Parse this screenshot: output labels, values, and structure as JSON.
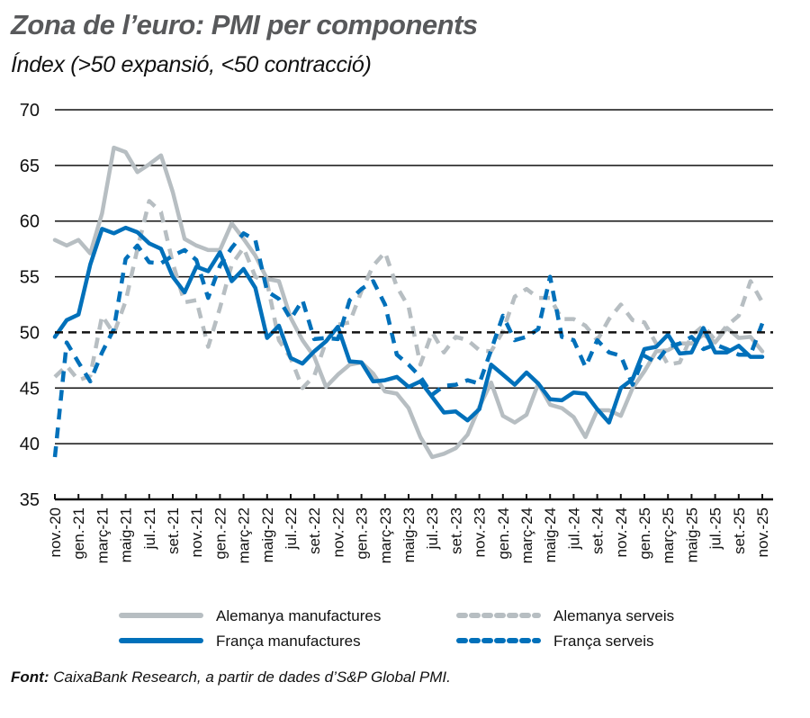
{
  "header": {
    "title": "Zona de l’euro: PMI per components",
    "subtitle": "Índex (>50 expansió, <50 contracció)"
  },
  "source": {
    "label": "Font:",
    "text": " CaixaBank Research, a partir de dades d’S&P Global PMI."
  },
  "colors": {
    "grey": "#b7bec2",
    "blue": "#0070ba",
    "grid": "#111111"
  },
  "chart_data": {
    "type": "line",
    "title": "Zona de l’euro: PMI per components",
    "subtitle": "Índex (>50 expansió, <50 contracció)",
    "xlabel": "",
    "ylabel": "Índex",
    "ylim": [
      35,
      70
    ],
    "yticks": [
      35,
      40,
      45,
      50,
      55,
      60,
      65,
      70
    ],
    "grid": true,
    "reference_line": {
      "y": 50,
      "style": "dashed",
      "color": "#111111"
    },
    "legend_position": "bottom",
    "x_tick_labels": [
      "nov.-20",
      "gen.-21",
      "març-21",
      "maig-21",
      "jul.-21",
      "set.-21",
      "nov.-21",
      "gen.-22",
      "març-22",
      "maig-22",
      "jul.-22",
      "set.-22",
      "nov.-22",
      "gen.-23",
      "març-23",
      "maig-23",
      "jul.-23",
      "set.-23",
      "nov.-23",
      "gen.-24",
      "març-24",
      "maig-24",
      "jul.-24",
      "set.-24",
      "nov.-24",
      "gen.-25",
      "març-25",
      "maig-25",
      "jul.-25",
      "set.-25",
      "nov.-25"
    ],
    "x_start": "nov.-20",
    "x_end": "nov.-25",
    "frequency": "monthly",
    "series": [
      {
        "name": "Alemanya manufactures",
        "color": "#b7bec2",
        "style": "solid",
        "values": [
          58.3,
          57.8,
          58.3,
          57.1,
          60.7,
          66.6,
          66.2,
          64.4,
          65.1,
          65.9,
          62.6,
          58.4,
          57.8,
          57.4,
          57.4,
          59.8,
          58.4,
          56.9,
          54.8,
          54.6,
          51.3,
          49.3,
          47.8,
          45.1,
          46.2,
          47.1,
          47.3,
          46.3,
          44.7,
          44.5,
          43.2,
          40.6,
          38.8,
          39.1,
          39.6,
          40.8,
          43.3,
          45.5,
          42.5,
          41.9,
          42.6,
          45.4,
          43.5,
          43.2,
          42.4,
          40.6,
          43.0,
          43.0,
          42.5,
          45.0,
          46.5,
          48.3,
          48.4,
          49.0,
          49.0,
          49.8,
          49.1,
          50.4,
          49.5,
          49.6,
          48.3
        ]
      },
      {
        "name": "Alemanya serveis",
        "color": "#b7bec2",
        "style": "dashed",
        "values": [
          46.0,
          47.0,
          45.7,
          46.1,
          51.5,
          49.9,
          52.8,
          57.5,
          61.8,
          60.8,
          56.2,
          52.7,
          52.9,
          48.7,
          52.2,
          56.1,
          57.6,
          55.0,
          54.5,
          49.3,
          47.7,
          45.0,
          46.1,
          49.2,
          50.7,
          50.9,
          53.7,
          56.0,
          57.2,
          54.1,
          52.3,
          47.1,
          50.0,
          48.2,
          49.6,
          49.3,
          48.4,
          48.3,
          50.1,
          53.2,
          53.9,
          53.1,
          53.1,
          51.2,
          51.2,
          50.6,
          49.3,
          51.2,
          52.5,
          51.1,
          50.9,
          49.0,
          47.1,
          47.3,
          49.7,
          50.6,
          49.3,
          50.6,
          51.5,
          54.6,
          52.7
        ]
      },
      {
        "name": "França manufactures",
        "color": "#0070ba",
        "style": "solid",
        "values": [
          49.6,
          51.1,
          51.6,
          56.1,
          59.3,
          58.9,
          59.4,
          59.0,
          58.0,
          57.5,
          55.0,
          53.6,
          55.9,
          55.5,
          57.2,
          54.6,
          55.7,
          54.0,
          49.5,
          50.6,
          47.7,
          47.2,
          48.3,
          49.2,
          50.5,
          47.4,
          47.3,
          45.6,
          45.7,
          46.0,
          45.1,
          45.6,
          44.2,
          42.8,
          42.9,
          42.1,
          43.1,
          47.1,
          46.2,
          45.3,
          46.4,
          45.4,
          44.0,
          43.9,
          44.6,
          44.5,
          43.1,
          41.9,
          45.0,
          45.8,
          48.5,
          48.7,
          49.8,
          48.1,
          48.2,
          50.4,
          48.2,
          48.2,
          48.8,
          47.8,
          47.8
        ]
      },
      {
        "name": "França serveis",
        "color": "#0070ba",
        "style": "dashed",
        "values": [
          38.8,
          49.1,
          47.3,
          45.6,
          48.2,
          50.3,
          56.6,
          57.8,
          56.3,
          56.2,
          56.9,
          57.4,
          56.5,
          53.1,
          56.0,
          57.6,
          58.9,
          58.3,
          53.7,
          53.0,
          51.2,
          52.9,
          49.4,
          49.5,
          49.4,
          52.9,
          53.9,
          54.6,
          52.5,
          48.0,
          47.1,
          46.0,
          44.4,
          45.2,
          45.3,
          45.7,
          45.4,
          48.4,
          51.5,
          49.3,
          49.6,
          50.3,
          55.0,
          49.6,
          49.3,
          46.9,
          49.3,
          48.2,
          47.9,
          45.3,
          47.9,
          47.3,
          48.7,
          49.0,
          49.6,
          48.5,
          48.9,
          48.5,
          48.0,
          48.0,
          50.8
        ]
      }
    ]
  },
  "legend": {
    "items": [
      {
        "label": "Alemanya manufactures",
        "color": "#b7bec2",
        "style": "solid"
      },
      {
        "label": "Alemanya serveis",
        "color": "#b7bec2",
        "style": "dashed"
      },
      {
        "label": "França manufactures",
        "color": "#0070ba",
        "style": "solid"
      },
      {
        "label": "França serveis",
        "color": "#0070ba",
        "style": "dashed"
      }
    ]
  }
}
